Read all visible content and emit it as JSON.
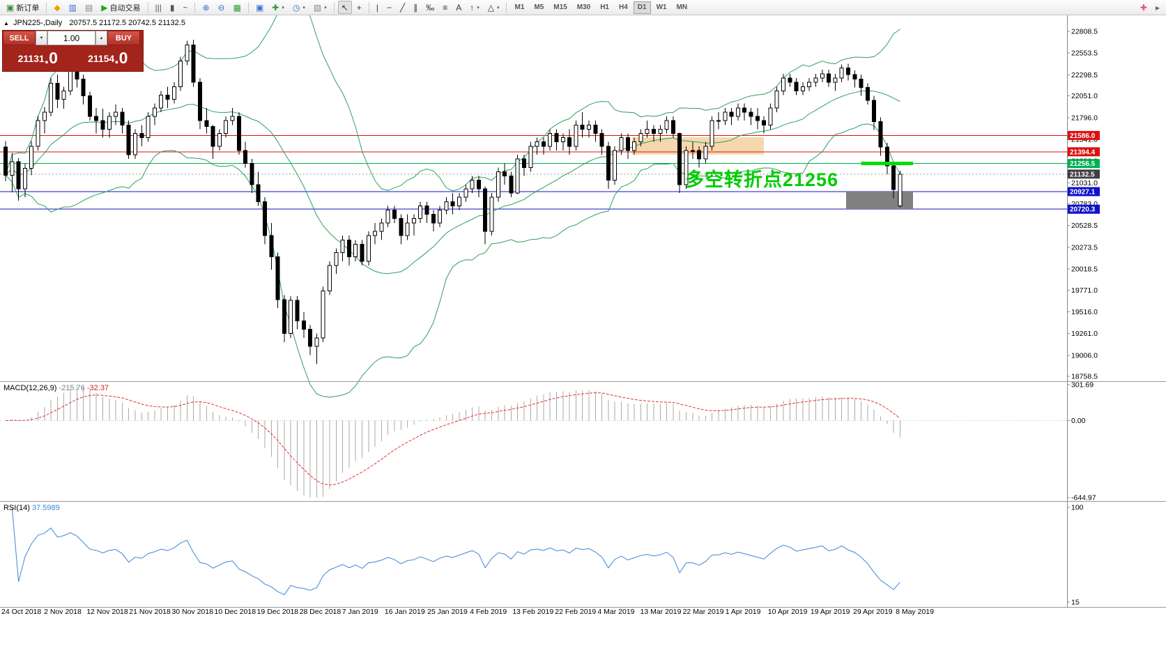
{
  "toolbar": {
    "caret_glyph": "▾",
    "groups": [
      {
        "items": [
          {
            "n": "new-order",
            "g": "▣",
            "c": "#3c8a3c",
            "label": "新订单"
          }
        ]
      },
      {
        "items": [
          {
            "n": "metaeditor",
            "g": "◆",
            "c": "#e8a200"
          },
          {
            "n": "market-watch",
            "g": "▥",
            "c": "#3a6fd0"
          },
          {
            "n": "data-window",
            "g": "▤",
            "c": "#7a8a99"
          },
          {
            "n": "autotrading",
            "g": "▶",
            "c": "#1fa51f",
            "label": "自动交易"
          }
        ]
      },
      {
        "items": [
          {
            "n": "bar-chart-mode",
            "g": "|||",
            "c": "#555555"
          },
          {
            "n": "candlestick-mode",
            "g": "▮",
            "c": "#555555"
          },
          {
            "n": "line-chart-mode",
            "g": "~",
            "c": "#555555"
          }
        ]
      },
      {
        "items": [
          {
            "n": "zoom-in",
            "g": "⊕",
            "c": "#3a6fd0"
          },
          {
            "n": "zoom-out",
            "g": "⊖",
            "c": "#3a6fd0"
          },
          {
            "n": "tile-windows",
            "g": "▦",
            "c": "#2f9a2f"
          }
        ]
      },
      {
        "items": [
          {
            "n": "cascade-windows",
            "g": "▣",
            "c": "#3a6fd0"
          },
          {
            "n": "indicators",
            "g": "✚",
            "c": "#2f9a2f",
            "caret": true
          },
          {
            "n": "periods",
            "g": "◷",
            "c": "#3a6fd0",
            "caret": true
          },
          {
            "n": "templates",
            "g": "▧",
            "c": "#8a8a8a",
            "caret": true
          }
        ]
      },
      {
        "items": [
          {
            "n": "cursor",
            "g": "↖",
            "c": "#333333",
            "active": true
          },
          {
            "n": "crosshair",
            "g": "+",
            "c": "#333333"
          }
        ]
      },
      {
        "items": [
          {
            "n": "vertical-line-tool",
            "g": "|",
            "c": "#333333"
          },
          {
            "n": "horizontal-line-tool",
            "g": "−",
            "c": "#333333"
          },
          {
            "n": "trendline-tool",
            "g": "╱",
            "c": "#333333"
          },
          {
            "n": "channel-tool",
            "g": "∥",
            "c": "#333333"
          },
          {
            "n": "fibonacci-tool",
            "g": "‰",
            "c": "#333333"
          },
          {
            "n": "grid-tool",
            "g": "≡",
            "c": "#333333"
          },
          {
            "n": "text-tool",
            "g": "A",
            "c": "#333333"
          },
          {
            "n": "arrows-tool",
            "g": "↑",
            "c": "#333333",
            "caret": true
          },
          {
            "n": "shapes-tool",
            "g": "△",
            "c": "#333333",
            "caret": true
          }
        ]
      }
    ],
    "timeframes": [
      "M1",
      "M5",
      "M15",
      "M30",
      "H1",
      "H4",
      "D1",
      "W1",
      "MN"
    ],
    "active_timeframe": "D1",
    "right_items": [
      {
        "n": "add-indicator-quick",
        "g": "✚",
        "c": "#e0508a"
      },
      {
        "n": "toolbar-overflow",
        "g": "▸",
        "c": "#666666"
      }
    ]
  },
  "trade_panel": {
    "sell_label": "SELL",
    "buy_label": "BUY",
    "volume": "1.00",
    "sell_price": "21131.0",
    "buy_price": "21154.0",
    "volume_down_icon": "▼",
    "volume_up_icon": "▲"
  },
  "chart": {
    "collapse_icon": "▲",
    "symbol_info": {
      "name": "JPN225-,Daily",
      "ohlc": "20757.5 21172.5 20742.5 21132.5"
    },
    "annotation": {
      "text": "多空转折点21256",
      "color": "#00cc00"
    },
    "band_color": "#2f9e5a",
    "y_ticks": [
      22808.5,
      22553.5,
      22298.5,
      22051.0,
      21796.0,
      21541.0,
      21286.0,
      21031.0,
      20783.0,
      20528.5,
      20273.5,
      20018.5,
      19771.0,
      19516.0,
      19261.0,
      19006.0,
      18758.5
    ],
    "x_labels": [
      "24 Oct 2018",
      "2 Nov 2018",
      "12 Nov 2018",
      "21 Nov 2018",
      "30 Nov 2018",
      "10 Dec 2018",
      "19 Dec 2018",
      "28 Dec 2018",
      "7 Jan 2019",
      "16 Jan 2019",
      "25 Jan 2019",
      "4 Feb 2019",
      "13 Feb 2019",
      "22 Feb 2019",
      "4 Mar 2019",
      "13 Mar 2019",
      "22 Mar 2019",
      "1 Apr 2019",
      "10 Apr 2019",
      "19 Apr 2019",
      "29 Apr 2019",
      "8 May 2019"
    ],
    "levels": [
      {
        "price": 21586.0,
        "label": "21586.0",
        "color": "#dd1111"
      },
      {
        "price": 21394.4,
        "label": "21394.4",
        "color": "#dd1111"
      },
      {
        "price": 21256.5,
        "label": "21256.5",
        "color": "#00b050"
      },
      {
        "price": 20927.1,
        "label": "20927.1",
        "color": "#1111cc"
      },
      {
        "price": 20720.3,
        "label": "20720.3",
        "color": "#1111cc"
      }
    ],
    "current_price": {
      "value": 21132.5,
      "label": "21132.5",
      "box_color": "#3f3f46"
    },
    "zones": [
      {
        "name": "resistance-zone",
        "layer": "back",
        "bar_start": 97,
        "bar_end": 117,
        "price_top": 21565,
        "price_bottom": 21360,
        "color": "#f6d8ae"
      },
      {
        "name": "support-zone",
        "layer": "front",
        "bar_start": 130,
        "bar_end": 140,
        "price_top": 20927.1,
        "price_bottom": 20720.3,
        "color": "#808080"
      }
    ],
    "green_segment": {
      "price": 21256.5,
      "bar_start": 132,
      "bar_end": 140,
      "color": "#00dd00"
    },
    "candles": [
      [
        21450,
        21520,
        21050,
        21120
      ],
      [
        21120,
        21380,
        20920,
        21280
      ],
      [
        21280,
        21320,
        20820,
        20960
      ],
      [
        20960,
        21260,
        20860,
        21200
      ],
      [
        21200,
        21520,
        21120,
        21460
      ],
      [
        21460,
        21820,
        21410,
        21760
      ],
      [
        21760,
        21920,
        21610,
        21860
      ],
      [
        21860,
        22260,
        21810,
        22200
      ],
      [
        22200,
        22300,
        21910,
        22010
      ],
      [
        22010,
        22160,
        21900,
        22110
      ],
      [
        22110,
        22400,
        22060,
        22340
      ],
      [
        22340,
        22430,
        22150,
        22250
      ],
      [
        22250,
        22300,
        21950,
        22050
      ],
      [
        22050,
        22100,
        21760,
        21810
      ],
      [
        21810,
        21910,
        21610,
        21760
      ],
      [
        21760,
        21900,
        21560,
        21660
      ],
      [
        21660,
        21860,
        21560,
        21810
      ],
      [
        21810,
        21950,
        21710,
        21860
      ],
      [
        21860,
        21910,
        21610,
        21710
      ],
      [
        21710,
        21760,
        21310,
        21360
      ],
      [
        21360,
        21660,
        21310,
        21610
      ],
      [
        21610,
        21710,
        21460,
        21560
      ],
      [
        21560,
        21860,
        21510,
        21810
      ],
      [
        21810,
        21960,
        21710,
        21910
      ],
      [
        21910,
        22110,
        21860,
        22060
      ],
      [
        22060,
        22160,
        21910,
        22010
      ],
      [
        22010,
        22210,
        21960,
        22160
      ],
      [
        22160,
        22510,
        22110,
        22460
      ],
      [
        22460,
        22700,
        22410,
        22650
      ],
      [
        22650,
        22710,
        22160,
        22210
      ],
      [
        22210,
        22260,
        21660,
        21760
      ],
      [
        21760,
        21910,
        21610,
        21690
      ],
      [
        21690,
        21710,
        21310,
        21460
      ],
      [
        21460,
        21660,
        21410,
        21610
      ],
      [
        21610,
        21810,
        21560,
        21760
      ],
      [
        21760,
        21910,
        21710,
        21810
      ],
      [
        21810,
        21860,
        21360,
        21410
      ],
      [
        21410,
        21510,
        21210,
        21260
      ],
      [
        21260,
        21310,
        20910,
        21010
      ],
      [
        21010,
        21160,
        20760,
        20810
      ],
      [
        20810,
        20860,
        20310,
        20410
      ],
      [
        20410,
        20560,
        20010,
        20160
      ],
      [
        20160,
        20210,
        19560,
        19660
      ],
      [
        19660,
        19710,
        19160,
        19260
      ],
      [
        19260,
        19700,
        19210,
        19650
      ],
      [
        19650,
        19700,
        19310,
        19410
      ],
      [
        19410,
        19510,
        19210,
        19310
      ],
      [
        19310,
        19360,
        19010,
        19110
      ],
      [
        19110,
        19260,
        18900,
        19210
      ],
      [
        19210,
        19810,
        19160,
        19760
      ],
      [
        19760,
        20110,
        19710,
        20060
      ],
      [
        20060,
        20260,
        19960,
        20210
      ],
      [
        20210,
        20410,
        20110,
        20360
      ],
      [
        20360,
        20410,
        20060,
        20160
      ],
      [
        20160,
        20360,
        20110,
        20310
      ],
      [
        20310,
        20360,
        20060,
        20110
      ],
      [
        20110,
        20460,
        20060,
        20410
      ],
      [
        20410,
        20560,
        20310,
        20460
      ],
      [
        20460,
        20610,
        20360,
        20560
      ],
      [
        20560,
        20760,
        20510,
        20710
      ],
      [
        20710,
        20760,
        20560,
        20610
      ],
      [
        20610,
        20660,
        20310,
        20410
      ],
      [
        20410,
        20660,
        20360,
        20560
      ],
      [
        20560,
        20660,
        20410,
        20610
      ],
      [
        20610,
        20810,
        20560,
        20760
      ],
      [
        20760,
        20810,
        20560,
        20660
      ],
      [
        20660,
        20710,
        20460,
        20560
      ],
      [
        20560,
        20760,
        20510,
        20710
      ],
      [
        20710,
        20860,
        20660,
        20810
      ],
      [
        20810,
        20910,
        20660,
        20760
      ],
      [
        20760,
        20910,
        20710,
        20860
      ],
      [
        20860,
        21010,
        20810,
        20960
      ],
      [
        20960,
        21110,
        20910,
        21060
      ],
      [
        21060,
        21110,
        20860,
        20960
      ],
      [
        20960,
        20990,
        20310,
        20460
      ],
      [
        20460,
        20910,
        20410,
        20860
      ],
      [
        20860,
        21210,
        20810,
        21160
      ],
      [
        21160,
        21260,
        21010,
        21110
      ],
      [
        21110,
        21160,
        20860,
        20910
      ],
      [
        20910,
        21360,
        20900,
        21310
      ],
      [
        21310,
        21360,
        21110,
        21210
      ],
      [
        21210,
        21510,
        21160,
        21460
      ],
      [
        21460,
        21560,
        21360,
        21510
      ],
      [
        21510,
        21560,
        21360,
        21460
      ],
      [
        21460,
        21660,
        21410,
        21610
      ],
      [
        21610,
        21660,
        21410,
        21510
      ],
      [
        21510,
        21610,
        21410,
        21560
      ],
      [
        21560,
        21660,
        21360,
        21460
      ],
      [
        21460,
        21760,
        21410,
        21710
      ],
      [
        21710,
        21860,
        21560,
        21660
      ],
      [
        21660,
        21760,
        21560,
        21710
      ],
      [
        21710,
        21760,
        21510,
        21610
      ],
      [
        21610,
        21660,
        21360,
        21460
      ],
      [
        21460,
        21510,
        20960,
        21060
      ],
      [
        21060,
        21460,
        21010,
        21410
      ],
      [
        21410,
        21610,
        21360,
        21560
      ],
      [
        21560,
        21610,
        21310,
        21410
      ],
      [
        21410,
        21560,
        21360,
        21510
      ],
      [
        21510,
        21660,
        21460,
        21610
      ],
      [
        21610,
        21760,
        21560,
        21660
      ],
      [
        21660,
        21710,
        21510,
        21610
      ],
      [
        21610,
        21710,
        21510,
        21660
      ],
      [
        21660,
        21810,
        21610,
        21760
      ],
      [
        21760,
        21810,
        21560,
        21610
      ],
      [
        21610,
        21620,
        20910,
        21010
      ],
      [
        21010,
        21460,
        20960,
        21410
      ],
      [
        21410,
        21510,
        21310,
        21410
      ],
      [
        21410,
        21460,
        21210,
        21310
      ],
      [
        21310,
        21510,
        21260,
        21460
      ],
      [
        21460,
        21810,
        21410,
        21760
      ],
      [
        21760,
        21860,
        21660,
        21760
      ],
      [
        21760,
        21910,
        21710,
        21860
      ],
      [
        21860,
        21910,
        21710,
        21810
      ],
      [
        21810,
        21960,
        21760,
        21910
      ],
      [
        21910,
        21960,
        21760,
        21860
      ],
      [
        21860,
        21910,
        21710,
        21810
      ],
      [
        21810,
        21910,
        21660,
        21760
      ],
      [
        21760,
        21810,
        21610,
        21710
      ],
      [
        21710,
        21960,
        21660,
        21910
      ],
      [
        21910,
        22160,
        21860,
        22110
      ],
      [
        22110,
        22310,
        22060,
        22260
      ],
      [
        22260,
        22310,
        22160,
        22210
      ],
      [
        22210,
        22260,
        22060,
        22110
      ],
      [
        22110,
        22210,
        22060,
        22160
      ],
      [
        22160,
        22260,
        22110,
        22210
      ],
      [
        22210,
        22310,
        22160,
        22260
      ],
      [
        22260,
        22360,
        22210,
        22310
      ],
      [
        22310,
        22360,
        22160,
        22210
      ],
      [
        22210,
        22310,
        22110,
        22260
      ],
      [
        22260,
        22420,
        22210,
        22380
      ],
      [
        22380,
        22430,
        22230,
        22300
      ],
      [
        22300,
        22350,
        22150,
        22250
      ],
      [
        22250,
        22300,
        22050,
        22150
      ],
      [
        22150,
        22200,
        21950,
        22000
      ],
      [
        22000,
        22050,
        21650,
        21750
      ],
      [
        21750,
        21800,
        21350,
        21450
      ],
      [
        21450,
        21500,
        21130,
        21230
      ],
      [
        21230,
        21280,
        20850,
        20950
      ],
      [
        20757.5,
        21172.5,
        20742.5,
        21132.5
      ]
    ]
  },
  "macd": {
    "label": "MACD(12,26,9)",
    "value_main": "-215.76",
    "value_signal": "-32.37",
    "axis": {
      "top": "301.69",
      "zero": "0.00",
      "bottom": "-644.97"
    }
  },
  "rsi": {
    "label": "RSI(14)",
    "value": "37.5989",
    "axis_top": "100",
    "axis_bottom": "15"
  }
}
